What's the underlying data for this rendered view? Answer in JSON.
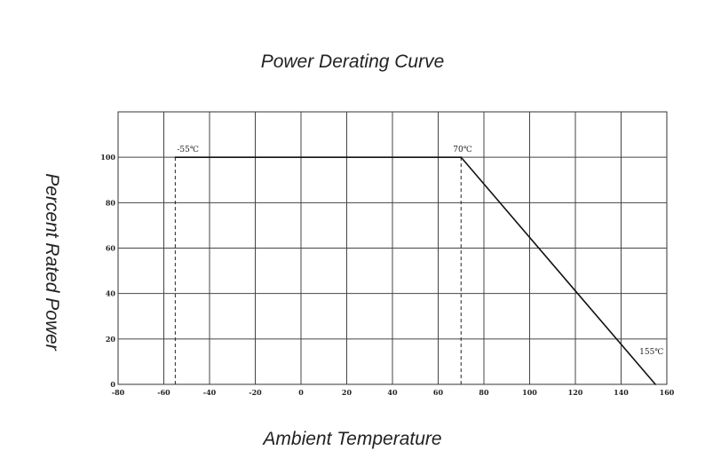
{
  "chart_data": {
    "type": "line",
    "title": "Power Derating Curve",
    "xlabel": "Ambient Temperature",
    "ylabel": "Percent Rated Power",
    "xlim": [
      -80,
      160
    ],
    "ylim": [
      0,
      120
    ],
    "x_ticks": [
      -80,
      -60,
      -40,
      -20,
      0,
      20,
      40,
      60,
      80,
      100,
      120,
      140,
      160
    ],
    "x_tick_labels": [
      "-80",
      "-60",
      "-40",
      "-20",
      "0",
      "20",
      "40",
      "60",
      "80",
      "100",
      "120",
      "140",
      "160"
    ],
    "y_ticks": [
      0,
      20,
      40,
      60,
      80,
      100
    ],
    "y_tick_labels": [
      "0",
      "20",
      "40",
      "60",
      "80",
      "100"
    ],
    "grid": true,
    "series": [
      {
        "x": [
          -55,
          70,
          155
        ],
        "y": [
          100,
          100,
          0
        ]
      }
    ],
    "reference_lines": [
      {
        "x": -55,
        "label": "-55℃"
      },
      {
        "x": 70,
        "label": "70℃"
      }
    ],
    "annotations": [
      {
        "x": 155,
        "y": 0,
        "label": "155℃"
      }
    ]
  }
}
